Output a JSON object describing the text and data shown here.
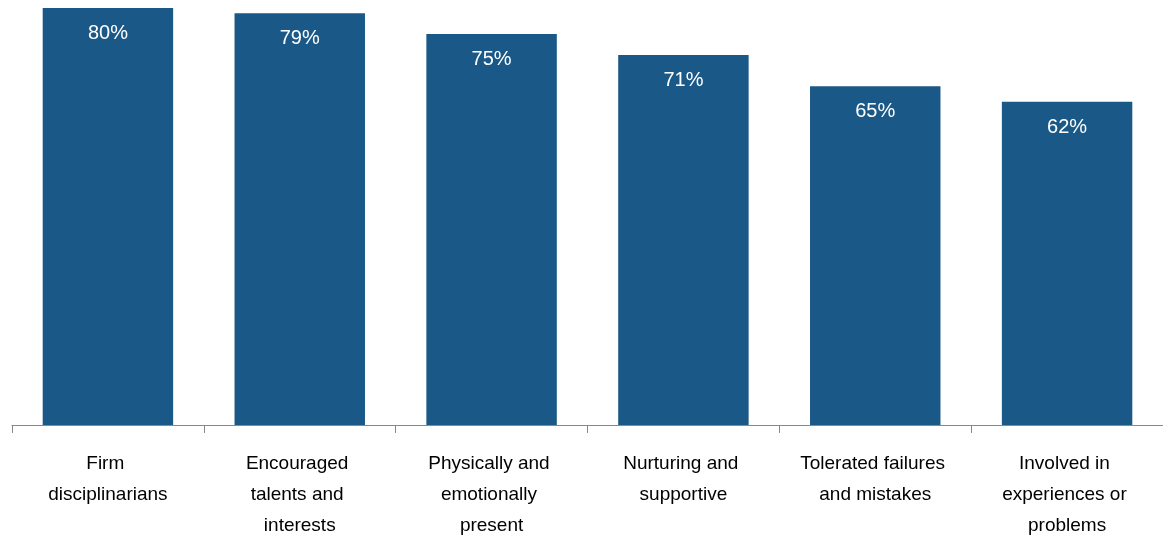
{
  "chart_data": {
    "type": "bar",
    "categories": [
      "Firm disciplinarians",
      "Encouraged talents and interests",
      "Physically and emotionally present",
      "Nurturing and supportive",
      "Tolerated failures and mistakes",
      "Involved in experiences or problems"
    ],
    "values": [
      80,
      79,
      75,
      71,
      65,
      62
    ],
    "value_labels": [
      "80%",
      "79%",
      "75%",
      "71%",
      "65%",
      "62%"
    ],
    "color": "#1a5887",
    "grid": false
  }
}
